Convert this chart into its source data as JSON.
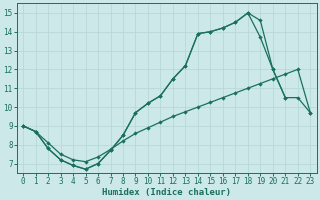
{
  "bg_color": "#cce8e8",
  "grid_color": "#b8d8d8",
  "line_color": "#1a7060",
  "xlabel": "Humidex (Indice chaleur)",
  "xlim": [
    -0.5,
    23.5
  ],
  "ylim": [
    6.5,
    15.5
  ],
  "xticks": [
    0,
    1,
    2,
    3,
    4,
    5,
    6,
    7,
    8,
    9,
    10,
    11,
    12,
    13,
    14,
    15,
    16,
    17,
    18,
    19,
    20,
    21,
    22,
    23
  ],
  "yticks": [
    7,
    8,
    9,
    10,
    11,
    12,
    13,
    14,
    15
  ],
  "line1": {
    "x": [
      0,
      1,
      2,
      3,
      4,
      5,
      6,
      7,
      8,
      9,
      10,
      11,
      12,
      13,
      14,
      15,
      16,
      17,
      18,
      19,
      20,
      21
    ],
    "y": [
      9.0,
      8.7,
      7.8,
      7.2,
      6.9,
      6.7,
      7.0,
      7.7,
      8.5,
      9.7,
      10.2,
      10.6,
      11.5,
      12.2,
      13.9,
      14.0,
      14.2,
      14.5,
      15.0,
      14.6,
      12.0,
      10.5
    ]
  },
  "line2": {
    "x": [
      0,
      1,
      2,
      3,
      4,
      5,
      6,
      7,
      8,
      9,
      10,
      11,
      12,
      13,
      14,
      15,
      16,
      17,
      18,
      19,
      20,
      21,
      22,
      23
    ],
    "y": [
      9.0,
      8.7,
      7.8,
      7.2,
      6.9,
      6.7,
      7.0,
      7.7,
      8.5,
      9.7,
      10.2,
      10.6,
      11.5,
      12.2,
      13.9,
      14.0,
      14.2,
      14.5,
      15.0,
      13.7,
      12.0,
      10.5,
      10.5,
      9.7
    ]
  },
  "line3": {
    "x": [
      0,
      1,
      2,
      3,
      4,
      5,
      6,
      7,
      8,
      9,
      10,
      11,
      12,
      13,
      14,
      15,
      16,
      17,
      18,
      19,
      20,
      21,
      22,
      23
    ],
    "y": [
      9.0,
      8.7,
      8.1,
      7.5,
      7.2,
      7.1,
      7.35,
      7.75,
      8.2,
      8.6,
      8.9,
      9.2,
      9.5,
      9.75,
      10.0,
      10.25,
      10.5,
      10.75,
      11.0,
      11.25,
      11.5,
      11.75,
      12.0,
      9.7
    ]
  },
  "title_fontsize": 7,
  "tick_fontsize": 5.5,
  "xlabel_fontsize": 6.5
}
